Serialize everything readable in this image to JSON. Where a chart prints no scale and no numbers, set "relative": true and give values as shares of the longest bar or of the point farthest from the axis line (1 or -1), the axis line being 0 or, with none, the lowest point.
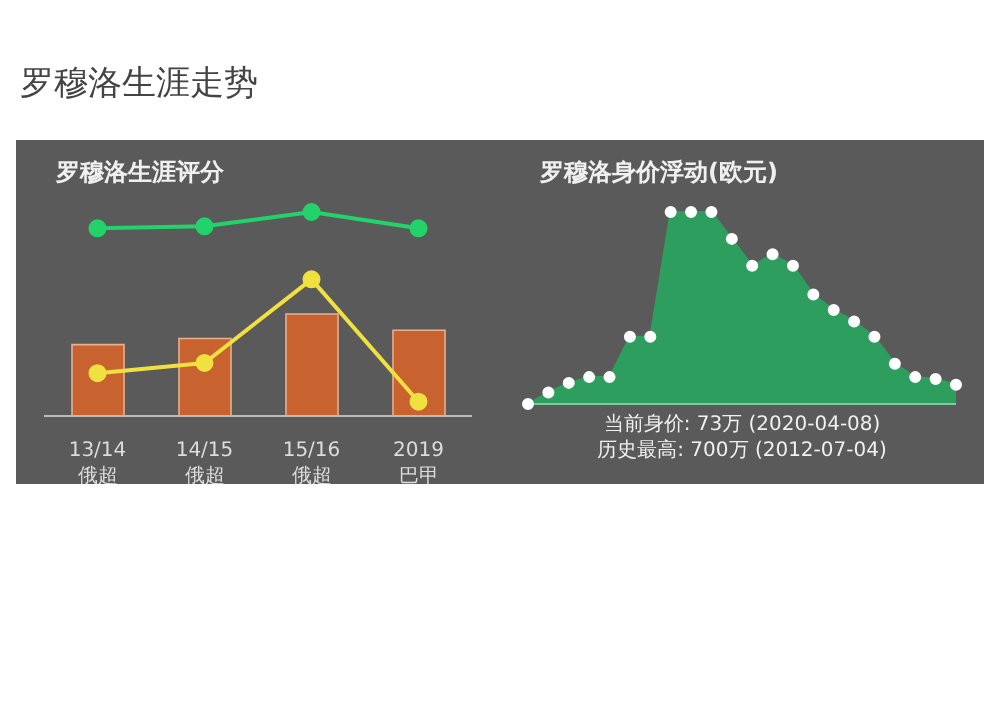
{
  "chart_data": [
    {
      "type": "bar",
      "title": "罗穆洛生涯评分",
      "annotations": [
        "罗穆洛生涯走势"
      ],
      "relative": true,
      "categories": [
        "13/14\n俄超",
        "14/15\n俄超",
        "15/16\n俄超",
        "2019\n巴甲"
      ],
      "legend": false,
      "marker": "circle",
      "series": [
        {
          "color": "#c8622e",
          "values": [
            0.35,
            0.38,
            0.5,
            0.42
          ]
        },
        {
          "type": "line",
          "color": "#22d36a",
          "values": [
            0.92,
            0.93,
            1,
            0.92
          ]
        },
        {
          "type": "line",
          "color": "#f0e040",
          "values": [
            0.21,
            0.26,
            0.67,
            0.07
          ]
        }
      ]
    },
    {
      "type": "area",
      "title": "罗穆洛身价浮动(欧元)",
      "annotations": [
        "当前身价: 73万 (2020-04-08)",
        "历史最高: 700万 (2012-07-04)"
      ],
      "relative": true,
      "legend": false,
      "marker": "circle",
      "categories": [
        null,
        null,
        null,
        null,
        null,
        null,
        null,
        null,
        null,
        null,
        null,
        null,
        null,
        null,
        null,
        null,
        null,
        null,
        null,
        null,
        null,
        null
      ],
      "series": [
        {
          "color": "#2e9e5e",
          "values": [
            0,
            0.06,
            0.11,
            0.14,
            0.14,
            0.35,
            0.35,
            1,
            1,
            1,
            0.86,
            0.72,
            0.78,
            0.72,
            0.57,
            0.49,
            0.43,
            0.35,
            0.21,
            0.14,
            0.13,
            0.1
          ]
        }
      ]
    }
  ]
}
